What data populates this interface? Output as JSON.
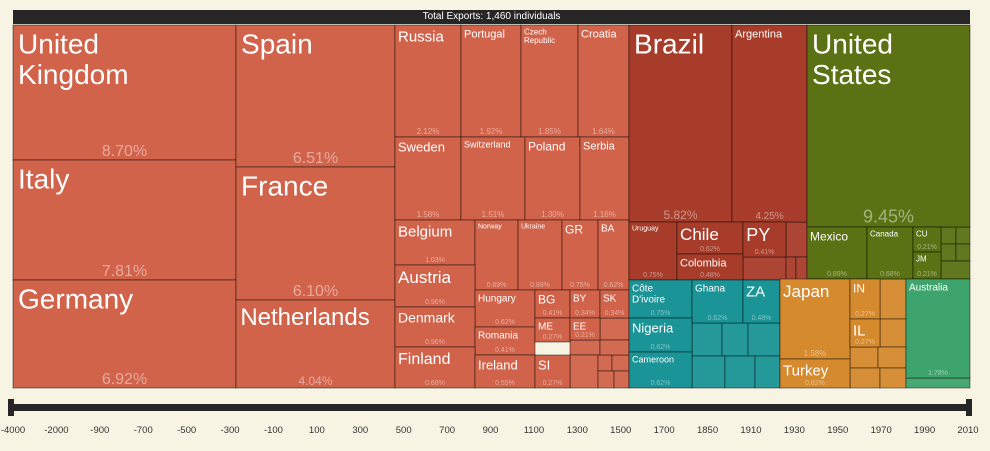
{
  "chart_data": {
    "type": "treemap",
    "title": "Total Exports: 1,460 individuals",
    "colors": {
      "europe": "#d2634b",
      "south_america": "#a83c2a",
      "north_america": "#5a7214",
      "africa": "#1a9496",
      "asia": "#d68a2e",
      "oceania": "#3ea46e"
    },
    "blocks": [
      {
        "label": "United Kingdom",
        "value": "8.70%",
        "region": "europe"
      },
      {
        "label": "Italy",
        "value": "7.81%",
        "region": "europe"
      },
      {
        "label": "Germany",
        "value": "6.92%",
        "region": "europe"
      },
      {
        "label": "Spain",
        "value": "6.51%",
        "region": "europe"
      },
      {
        "label": "France",
        "value": "6.10%",
        "region": "europe"
      },
      {
        "label": "Netherlands",
        "value": "4.04%",
        "region": "europe"
      },
      {
        "label": "Russia",
        "value": "2.12%",
        "region": "europe"
      },
      {
        "label": "Portugal",
        "value": "1.92%",
        "region": "europe"
      },
      {
        "label": "Czech Republic",
        "value": "1.85%",
        "region": "europe"
      },
      {
        "label": "Croatia",
        "value": "1.64%",
        "region": "europe"
      },
      {
        "label": "Sweden",
        "value": "1.58%",
        "region": "europe"
      },
      {
        "label": "Switzerland",
        "value": "1.51%",
        "region": "europe"
      },
      {
        "label": "Poland",
        "value": "1.30%",
        "region": "europe"
      },
      {
        "label": "Serbia",
        "value": "1.16%",
        "region": "europe"
      },
      {
        "label": "Belgium",
        "value": "1.03%",
        "region": "europe"
      },
      {
        "label": "Norway",
        "value": "0.89%",
        "region": "europe"
      },
      {
        "label": "Ukraine",
        "value": "0.89%",
        "region": "europe"
      },
      {
        "label": "GR",
        "value": "0.75%",
        "region": "europe"
      },
      {
        "label": "BA",
        "value": "0.62%",
        "region": "europe"
      },
      {
        "label": "Austria",
        "value": "0.96%",
        "region": "europe"
      },
      {
        "label": "Hungary",
        "value": "0.62%",
        "region": "europe"
      },
      {
        "label": "BG",
        "value": "0.41%",
        "region": "europe"
      },
      {
        "label": "BY",
        "value": "0.34%",
        "region": "europe"
      },
      {
        "label": "SK",
        "value": "0.34%",
        "region": "europe"
      },
      {
        "label": "Denmark",
        "value": "0.96%",
        "region": "europe"
      },
      {
        "label": "Romania",
        "value": "0.41%",
        "region": "europe"
      },
      {
        "label": "ME",
        "value": "0.27%",
        "region": "europe"
      },
      {
        "label": "EE",
        "value": "0.21%",
        "region": "europe"
      },
      {
        "label": "Finland",
        "value": "0.68%",
        "region": "europe"
      },
      {
        "label": "Ireland",
        "value": "0.55%",
        "region": "europe"
      },
      {
        "label": "SI",
        "value": "0.27%",
        "region": "europe"
      },
      {
        "label": "Brazil",
        "value": "5.82%",
        "region": "south_america"
      },
      {
        "label": "Argentina",
        "value": "4.25%",
        "region": "south_america"
      },
      {
        "label": "Uruguay",
        "value": "0.75%",
        "region": "south_america"
      },
      {
        "label": "Chile",
        "value": "0.62%",
        "region": "south_america"
      },
      {
        "label": "Colombia",
        "value": "0.48%",
        "region": "south_america"
      },
      {
        "label": "PY",
        "value": "0.41%",
        "region": "south_america"
      },
      {
        "label": "United States",
        "value": "9.45%",
        "region": "north_america"
      },
      {
        "label": "Mexico",
        "value": "0.89%",
        "region": "north_america"
      },
      {
        "label": "Canada",
        "value": "0.68%",
        "region": "north_america"
      },
      {
        "label": "CU",
        "value": "0.21%",
        "region": "north_america"
      },
      {
        "label": "JM",
        "value": "0.21%",
        "region": "north_america"
      },
      {
        "label": "Côte D'ivoire",
        "value": "0.75%",
        "region": "africa"
      },
      {
        "label": "Ghana",
        "value": "0.62%",
        "region": "africa"
      },
      {
        "label": "ZA",
        "value": "0.48%",
        "region": "africa"
      },
      {
        "label": "Nigeria",
        "value": "0.62%",
        "region": "africa"
      },
      {
        "label": "Cameroon",
        "value": "0.62%",
        "region": "africa"
      },
      {
        "label": "Japan",
        "value": "1.58%",
        "region": "asia"
      },
      {
        "label": "Turkey",
        "value": "0.62%",
        "region": "asia"
      },
      {
        "label": "IN",
        "value": "0.27%",
        "region": "asia"
      },
      {
        "label": "IL",
        "value": "0.27%",
        "region": "asia"
      },
      {
        "label": "Australia",
        "value": "1.78%",
        "region": "oceania"
      }
    ],
    "timeline_ticks": [
      "-4000",
      "-2000",
      "-900",
      "-700",
      "-500",
      "-300",
      "-100",
      "100",
      "300",
      "500",
      "700",
      "900",
      "1100",
      "1300",
      "1500",
      "1700",
      "1850",
      "1910",
      "1930",
      "1950",
      "1970",
      "1990",
      "2010"
    ]
  }
}
